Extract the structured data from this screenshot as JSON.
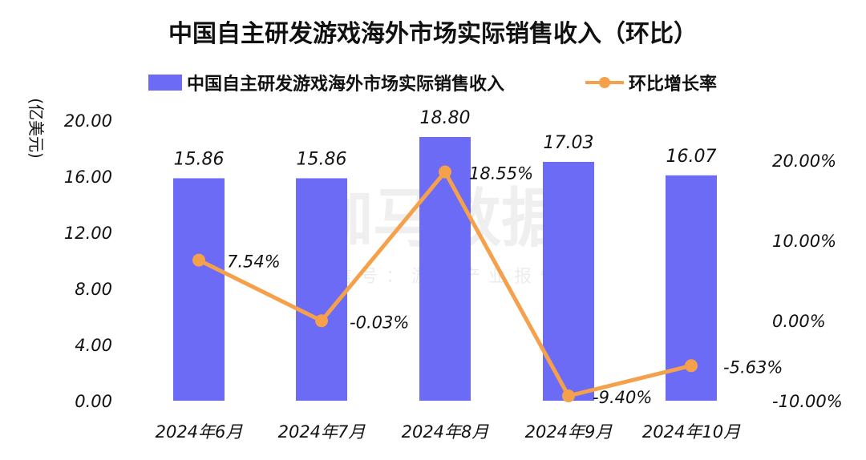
{
  "chart_data": {
    "type": "bar",
    "title": "中国自主研发游戏海外市场实际销售收入（环比）",
    "ylabel": "(亿美元)",
    "ylim": [
      0,
      20
    ],
    "y_ticks": [
      "0.00",
      "4.00",
      "8.00",
      "12.00",
      "16.00",
      "20.00"
    ],
    "y2lim": [
      -10,
      20
    ],
    "y2_ticks": [
      "-10.00%",
      "0.00%",
      "10.00%",
      "20.00%"
    ],
    "categories": [
      "2024年6月",
      "2024年7月",
      "2024年8月",
      "2024年9月",
      "2024年10月"
    ],
    "series": [
      {
        "name": "中国自主研发游戏海外市场实际销售收入",
        "type": "bar",
        "axis": "left",
        "values": [
          15.86,
          15.86,
          18.8,
          17.03,
          16.07
        ],
        "labels": [
          "15.86",
          "15.86",
          "18.80",
          "17.03",
          "16.07"
        ],
        "color": "#6B6BF5"
      },
      {
        "name": "环比增长率",
        "type": "line",
        "axis": "right",
        "values": [
          7.54,
          -0.03,
          18.55,
          -9.4,
          -5.63
        ],
        "labels": [
          "7.54%",
          "-0.03%",
          "18.55%",
          "-9.40%",
          "-5.63%"
        ],
        "color": "#F5A04A"
      }
    ],
    "grid": false,
    "legend_position": "top"
  },
  "watermark": {
    "main": "伽马数据",
    "sub": "微信号：游戏产业报告"
  }
}
